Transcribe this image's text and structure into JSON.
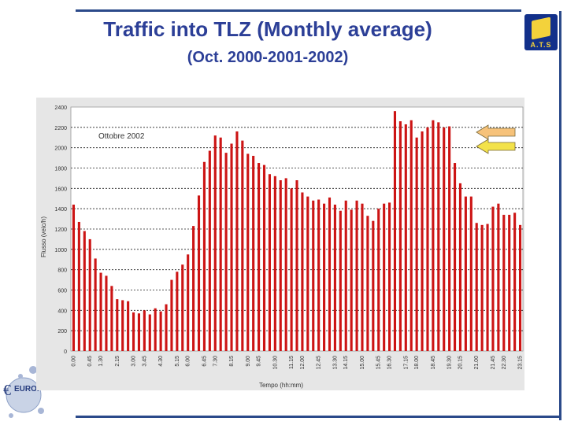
{
  "title": "Traffic into TLZ (Monthly average)",
  "subtitle": "(Oct. 2000-2001-2002)",
  "logo_text": "A.T.S",
  "euro_logo_text": "EUROF",
  "colors": {
    "title": "#2c3f97",
    "bar": "#cc1414",
    "frame": "#2b4a8a",
    "arrow1": "#f6c27a",
    "arrow2": "#f3e24a"
  },
  "chart_data": {
    "type": "bar",
    "annotation": "Ottobre 2002",
    "xlabel": "Tempo (hh:mm)",
    "ylabel": "Flusso (veic/h)",
    "ylim": [
      0,
      2400
    ],
    "y_ticks": [
      0,
      200,
      400,
      600,
      800,
      1000,
      1200,
      1400,
      1600,
      1800,
      2000,
      2200,
      2400
    ],
    "x_tick_labels": [
      "0.00",
      "0.45",
      "1.30",
      "2.15",
      "3.00",
      "3.45",
      "4.30",
      "5.15",
      "6.00",
      "6.45",
      "7.30",
      "8.15",
      "9.00",
      "9.45",
      "10.30",
      "11.15",
      "12.00",
      "12.45",
      "13.30",
      "14.15",
      "15.00",
      "15.45",
      "16.30",
      "17.15",
      "18.00",
      "18.45",
      "19.30",
      "20.15",
      "21.00",
      "21.45",
      "22.30",
      "23.15"
    ],
    "values": [
      1440,
      1270,
      1180,
      1100,
      910,
      770,
      740,
      640,
      510,
      500,
      490,
      380,
      370,
      400,
      360,
      420,
      390,
      460,
      700,
      780,
      850,
      950,
      1230,
      1530,
      1860,
      1970,
      2120,
      2100,
      1950,
      2040,
      2160,
      2070,
      1940,
      1920,
      1850,
      1830,
      1740,
      1720,
      1680,
      1700,
      1600,
      1680,
      1560,
      1520,
      1480,
      1490,
      1450,
      1510,
      1440,
      1380,
      1480,
      1390,
      1480,
      1450,
      1330,
      1280,
      1400,
      1450,
      1460,
      2360,
      2260,
      2230,
      2270,
      2100,
      2160,
      2200,
      2270,
      2250,
      2200,
      2210,
      1850,
      1650,
      1520,
      1520,
      1260,
      1240,
      1250,
      1420,
      1450,
      1340,
      1340,
      1360,
      1240
    ]
  }
}
